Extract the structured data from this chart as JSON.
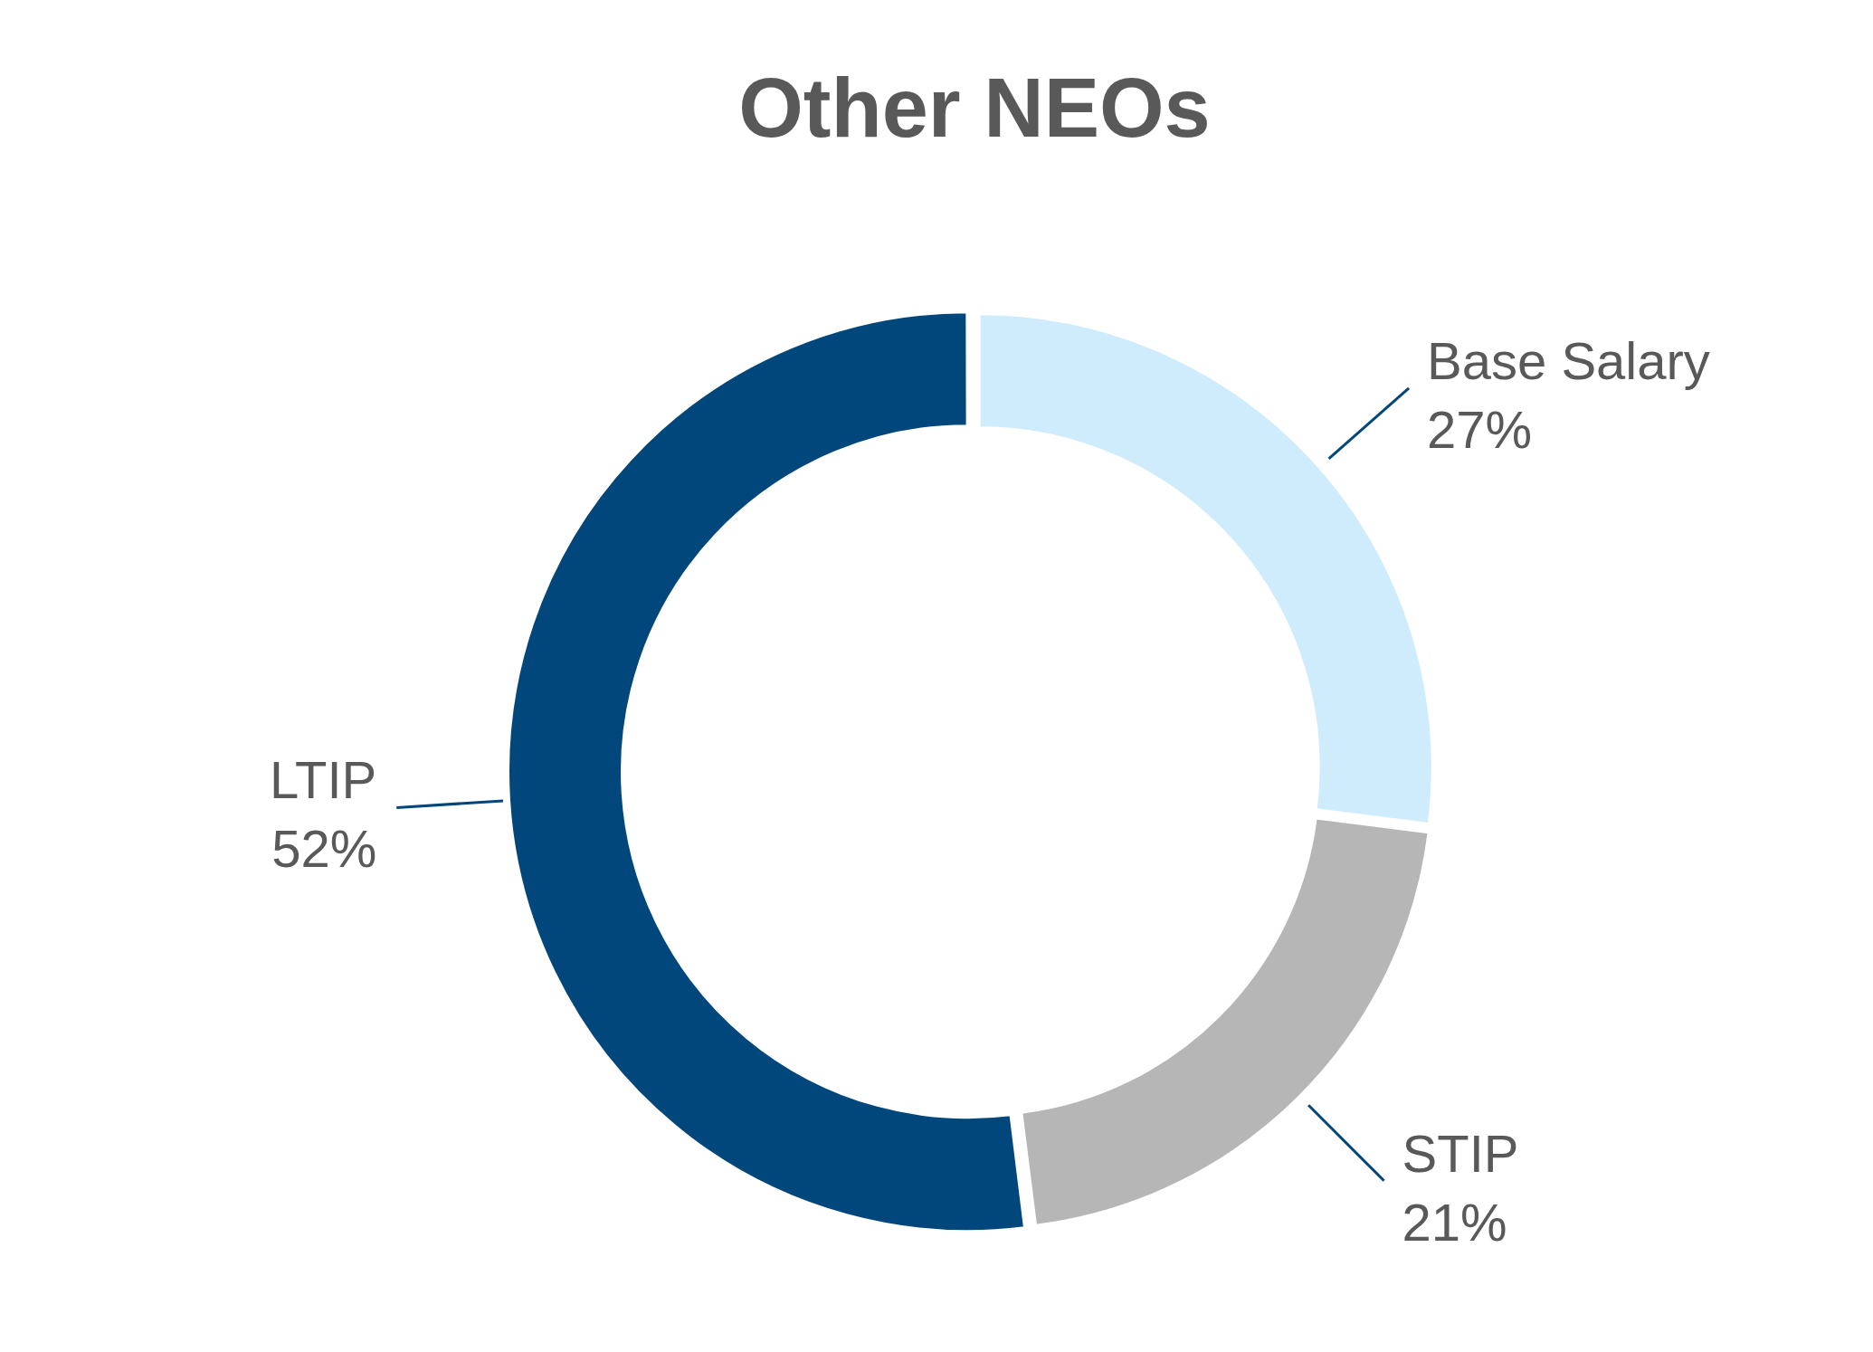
{
  "chart_data": {
    "type": "donut",
    "title": "Other NEOs",
    "categories": [
      "Base Salary",
      "STIP",
      "LTIP"
    ],
    "values": [
      27,
      21,
      52
    ],
    "value_labels": [
      "27%",
      "21%",
      "52%"
    ],
    "colors": [
      "#cfecfc",
      "#b6b6b6",
      "#02477c"
    ],
    "legend": false
  }
}
